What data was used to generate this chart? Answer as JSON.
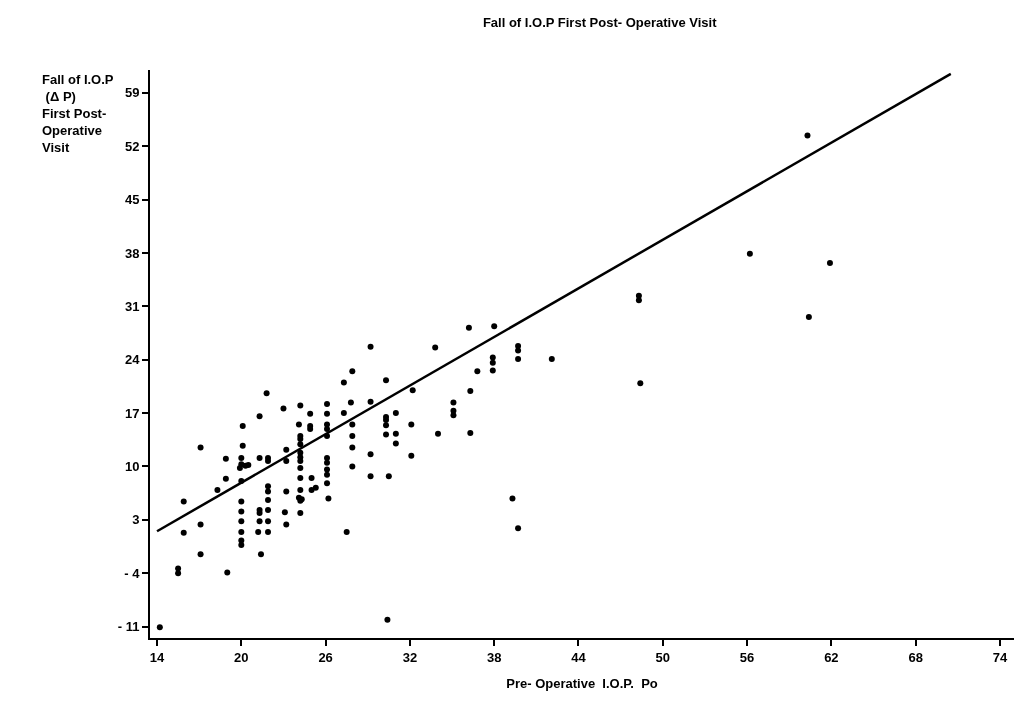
{
  "chart_data": {
    "type": "scatter",
    "title": "Fall of I.O.P First Post- Operative Visit",
    "xlabel": "Pre- Operative  I.O.P.  Po",
    "ylabel": "Fall of I.O.P\n (Δ P)\nFirst Post-\nOperative\nVisit",
    "xlim": [
      13.5,
      75
    ],
    "xticks": [
      14,
      20,
      26,
      32,
      38,
      44,
      50,
      56,
      62,
      68,
      74
    ],
    "ylim": [
      -12.5,
      62
    ],
    "yticks": [
      {
        "value": -11,
        "label": "- 11"
      },
      {
        "value": -4,
        "label": "- 4"
      },
      3,
      10,
      17,
      24,
      31,
      38,
      45,
      52,
      59
    ],
    "grid": false,
    "marker": "circle",
    "series": [
      {
        "color": "#000000",
        "x": [
          14.2,
          15.5,
          15.5,
          15.9,
          15.9,
          17.1,
          17.1,
          17.1,
          18.3,
          18.9,
          18.9,
          19.0,
          20.1,
          20.1,
          20.0,
          20.0,
          20.3,
          19.9,
          20.5,
          20.0,
          20.0,
          20.0,
          20.0,
          20.0,
          20.0,
          20.0,
          21.3,
          21.3,
          21.8,
          21.9,
          21.9,
          21.9,
          21.9,
          21.9,
          21.9,
          21.9,
          21.9,
          21.3,
          21.3,
          21.3,
          21.2,
          21.4,
          23.0,
          23.2,
          23.2,
          23.2,
          23.1,
          23.2,
          24.2,
          24.1,
          24.2,
          24.2,
          24.2,
          24.2,
          24.2,
          24.2,
          24.2,
          24.2,
          24.2,
          24.1,
          24.3,
          24.2,
          24.2,
          24.9,
          24.9,
          24.9,
          25.0,
          25.0,
          25.3,
          26.1,
          26.1,
          26.1,
          26.1,
          26.1,
          26.1,
          26.1,
          26.1,
          26.1,
          26.1,
          26.2,
          27.5,
          27.3,
          27.9,
          27.8,
          27.3,
          27.9,
          27.9,
          27.9,
          27.9,
          29.2,
          29.2,
          29.2,
          29.2,
          30.3,
          30.3,
          30.3,
          30.3,
          30.3,
          30.5,
          30.4,
          31.0,
          31.0,
          31.0,
          32.2,
          32.1,
          32.1,
          33.8,
          34.0,
          35.1,
          35.1,
          35.1,
          36.3,
          36.3,
          36.2,
          36.8,
          37.9,
          37.9,
          37.9,
          38.0,
          39.7,
          39.7,
          39.7,
          42.1,
          39.3,
          39.7,
          48.3,
          48.3,
          48.4,
          56.2,
          60.3,
          60.4,
          61.9
        ],
        "values": [
          -11.1,
          -3.4,
          -4.0,
          5.4,
          1.3,
          12.5,
          2.4,
          -1.5,
          6.9,
          11.0,
          8.4,
          -3.9,
          15.3,
          12.7,
          11.1,
          10.3,
          10.1,
          9.8,
          10.2,
          8.1,
          5.4,
          4.1,
          2.8,
          1.4,
          0.3,
          -0.3,
          16.6,
          11.1,
          19.6,
          11.1,
          10.7,
          7.4,
          6.7,
          5.6,
          4.3,
          2.8,
          1.4,
          4.3,
          3.9,
          2.8,
          1.4,
          -1.5,
          17.6,
          12.2,
          10.7,
          6.7,
          4.0,
          2.4,
          18.0,
          15.5,
          14.0,
          13.6,
          12.9,
          11.8,
          11.2,
          10.7,
          9.8,
          8.5,
          6.9,
          5.9,
          5.7,
          5.5,
          3.9,
          16.9,
          15.3,
          14.9,
          8.5,
          6.9,
          7.2,
          18.2,
          16.9,
          15.5,
          14.9,
          14.0,
          11.1,
          10.5,
          9.6,
          8.9,
          7.8,
          5.8,
          1.4,
          21.0,
          22.5,
          18.4,
          17.0,
          15.5,
          14.0,
          12.5,
          10.0,
          25.7,
          18.5,
          11.6,
          8.7,
          21.3,
          16.5,
          16.1,
          15.4,
          14.2,
          8.7,
          -10.1,
          17.0,
          14.3,
          13.0,
          20.0,
          15.5,
          11.4,
          25.6,
          14.3,
          18.4,
          17.3,
          16.7,
          19.9,
          14.4,
          28.2,
          22.5,
          24.3,
          23.6,
          22.6,
          28.4,
          25.8,
          25.2,
          24.1,
          24.1,
          5.8,
          1.9,
          32.4,
          31.8,
          20.9,
          37.9,
          53.4,
          29.6,
          36.7
        ]
      },
      {
        "type": "line",
        "color": "#000000",
        "marker": "none",
        "line_style": "solid",
        "x": [
          14,
          70.5
        ],
        "values": [
          1.5,
          61.5
        ]
      }
    ]
  }
}
